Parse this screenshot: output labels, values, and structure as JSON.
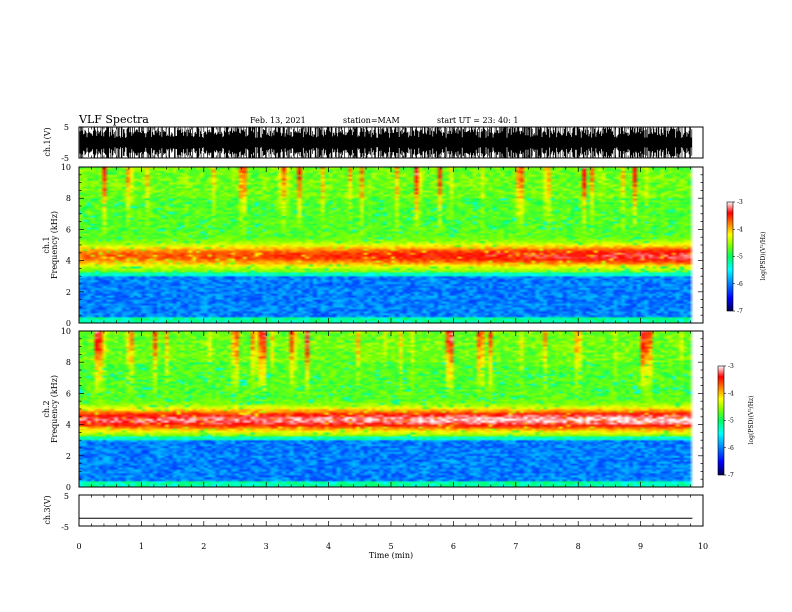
{
  "header": {
    "title": "VLF Spectra",
    "date": "Feb. 13, 2021",
    "station": "station=MAM",
    "start": "start UT =  23: 40: 1"
  },
  "chart_data": [
    {
      "id": "ch1-waveform",
      "type": "line",
      "ylabel": "ch.1(V)",
      "ylim": [
        -5,
        5
      ],
      "yticks": [
        -5,
        5
      ],
      "xlim": [
        0,
        10
      ],
      "description_of_signal": "dense impulsive waveform spanning full range"
    },
    {
      "id": "ch1-spectrogram",
      "type": "heatmap",
      "ylabel": [
        "ch.1",
        "Frequency (kHz)"
      ],
      "ylim": [
        0,
        10
      ],
      "yticks": [
        0,
        2,
        4,
        6,
        8,
        10
      ],
      "xlim": [
        0,
        10
      ],
      "data_end_min": 9.83,
      "band_center_khz": 4.3,
      "colorbar": {
        "label": "log(PSD)(V²/Hz)",
        "range": [
          -7,
          -3
        ],
        "ticks": [
          -7,
          -6,
          -5,
          -4,
          -3
        ]
      }
    },
    {
      "id": "ch2-spectrogram",
      "type": "heatmap",
      "ylabel": [
        "ch.2",
        "Frequency (kHz)"
      ],
      "ylim": [
        0,
        10
      ],
      "yticks": [
        0,
        2,
        4,
        6,
        8,
        10
      ],
      "xlim": [
        0,
        10
      ],
      "data_end_min": 9.83,
      "band_center_khz": 4.3,
      "colorbar": {
        "label": "log(PSD)(V²/Hz)",
        "range": [
          -7,
          -3
        ],
        "ticks": [
          -7,
          -6,
          -5,
          -4,
          -3
        ]
      }
    },
    {
      "id": "ch3-waveform",
      "type": "line",
      "ylabel": "ch.3(V)",
      "ylim": [
        -5,
        5
      ],
      "yticks": [
        -5,
        5
      ],
      "xlim": [
        0,
        10
      ],
      "constant_value_v": -2.5
    }
  ],
  "xaxis": {
    "label": "Time (min)",
    "ticks": [
      0,
      1,
      2,
      3,
      4,
      5,
      6,
      7,
      8,
      9,
      10
    ]
  },
  "colors": {
    "scale": [
      "#000060",
      "#0000ff",
      "#0080ff",
      "#00ffff",
      "#00ff80",
      "#40ff00",
      "#ffff00",
      "#ff8000",
      "#ff0000",
      "#ffffff"
    ]
  }
}
